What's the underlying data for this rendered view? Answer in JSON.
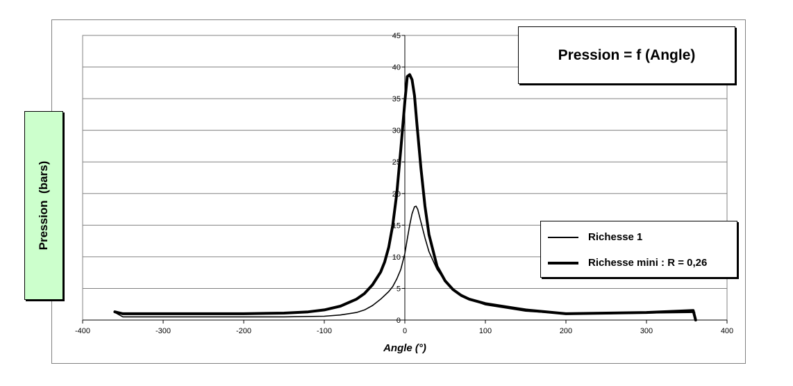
{
  "chart_data": {
    "type": "line",
    "title": "Pression = f (Angle)",
    "xlabel": "Angle (°)",
    "ylabel": "Pression  (bars)",
    "xlim": [
      -400,
      400
    ],
    "ylim": [
      0,
      45
    ],
    "xticks": [
      -400,
      -300,
      -200,
      -100,
      0,
      100,
      200,
      300,
      400
    ],
    "yticks": [
      0,
      5,
      10,
      15,
      20,
      25,
      30,
      35,
      40,
      45
    ],
    "grid": "horizontal",
    "legend_position": "right",
    "series": [
      {
        "name": "Richesse 1",
        "line_weight": "thin",
        "x": [
          -360,
          -350,
          -300,
          -200,
          -150,
          -100,
          -80,
          -60,
          -50,
          -40,
          -30,
          -20,
          -15,
          -10,
          -5,
          0,
          3,
          6,
          9,
          12,
          14,
          16,
          20,
          25,
          30,
          40,
          50,
          60,
          70,
          80,
          100,
          150,
          200,
          250,
          300,
          360
        ],
        "y": [
          1.2,
          0.5,
          0.5,
          0.5,
          0.5,
          0.6,
          0.8,
          1.2,
          1.6,
          2.3,
          3.3,
          4.5,
          5.3,
          6.5,
          8.0,
          10.5,
          12.8,
          15.0,
          16.8,
          17.9,
          18.0,
          17.5,
          15.5,
          13.0,
          10.8,
          8.0,
          6.2,
          4.9,
          4.0,
          3.3,
          2.4,
          1.4,
          1.0,
          1.0,
          1.1,
          1.2
        ]
      },
      {
        "name": "Richesse mini : R = 0,26",
        "line_weight": "thick",
        "x": [
          -360,
          -350,
          -300,
          -200,
          -150,
          -120,
          -100,
          -80,
          -60,
          -50,
          -40,
          -30,
          -25,
          -20,
          -15,
          -10,
          -5,
          0,
          3,
          6,
          9,
          12,
          15,
          20,
          25,
          30,
          40,
          50,
          60,
          70,
          80,
          100,
          140,
          150,
          200,
          250,
          300,
          358,
          360,
          361
        ],
        "y": [
          1.3,
          1.0,
          1.0,
          1.0,
          1.1,
          1.3,
          1.6,
          2.2,
          3.3,
          4.2,
          5.6,
          7.6,
          9.2,
          11.5,
          15.0,
          20.0,
          27.0,
          34.5,
          38.5,
          38.8,
          38.0,
          35.5,
          31.0,
          24.0,
          18.0,
          13.5,
          8.5,
          6.2,
          4.8,
          3.9,
          3.3,
          2.6,
          1.8,
          1.6,
          1.0,
          1.1,
          1.2,
          1.5,
          0.5,
          0.0
        ]
      }
    ]
  },
  "colors": {
    "ylabel_box_bg": "#ccffcc",
    "grid": "#808080",
    "line": "#000000"
  }
}
